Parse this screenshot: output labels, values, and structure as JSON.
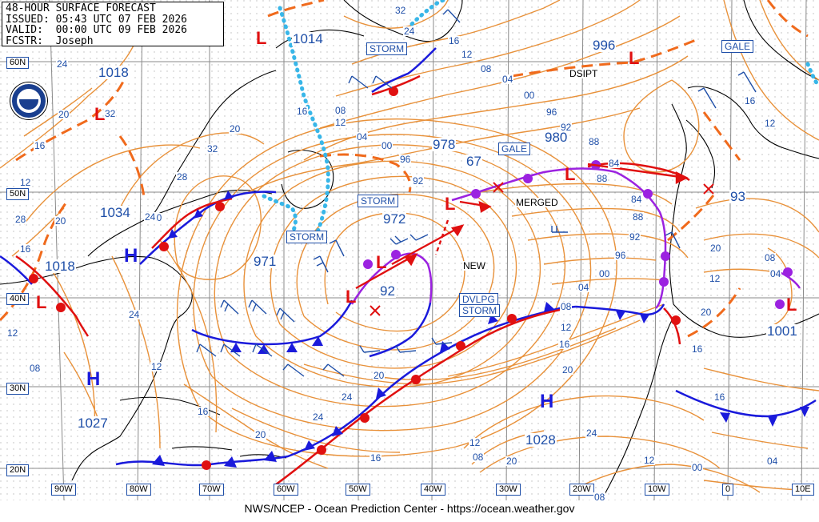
{
  "header": {
    "title": "48-HOUR SURFACE FORECAST",
    "issued": "ISSUED: 05:43 UTC 07 FEB 2026",
    "valid": "VALID:  00:00 UTC 09 FEB 2026",
    "forecaster": "FCSTR:  Joseph"
  },
  "footer": "NWS/NCEP - Ocean Prediction Center - https://ocean.weather.gov",
  "colors": {
    "isobar": "#e8913a",
    "label": "#1f4fa8",
    "cold_front": "#1a1adb",
    "warm_front": "#e01010",
    "occluded_front": "#9b22e0",
    "trough": "#f06a1c",
    "ice_edge": "#38b6e8",
    "land": "#000000",
    "grid": "#8a8a8a"
  },
  "lat_labels": [
    "60N",
    "50N",
    "40N",
    "30N",
    "20N"
  ],
  "lon_labels": [
    "90W",
    "80W",
    "70W",
    "60W",
    "50W",
    "40W",
    "30W",
    "20W",
    "10W",
    "0",
    "10E"
  ],
  "systems": [
    {
      "type": "H",
      "pressure": "1034"
    },
    {
      "type": "H",
      "pressure": "1027"
    },
    {
      "type": "H",
      "pressure": "1028"
    },
    {
      "type": "L",
      "pressure": "1014"
    },
    {
      "type": "L",
      "pressure": "996"
    },
    {
      "type": "L",
      "pressure": "978"
    },
    {
      "type": "L",
      "pressure": "980"
    },
    {
      "type": "L",
      "pressure": "972"
    },
    {
      "type": "L",
      "pressure": "971"
    },
    {
      "type": "L",
      "pressure": "93"
    },
    {
      "type": "L",
      "pressure": "1001"
    },
    {
      "type": "L",
      "pressure": "1018"
    },
    {
      "type": "L",
      "pressure": "1018"
    }
  ],
  "warnings": [
    "STORM",
    "STORM",
    "STORM",
    "GALE",
    "GALE",
    "DVLPG STORM"
  ],
  "annotations": [
    "DSIPT",
    "MERGED",
    "NEW",
    "67",
    "92"
  ],
  "isobar_values": [
    "32",
    "24",
    "16",
    "12",
    "08",
    "04",
    "00",
    "96",
    "92",
    "88",
    "84",
    "24",
    "20",
    "16",
    "12",
    "28",
    "32",
    "20",
    "24",
    "20",
    "32",
    "28",
    "24",
    "20",
    "16",
    "12",
    "08",
    "12",
    "16",
    "20",
    "24",
    "24",
    "20",
    "16",
    "12",
    "08",
    "04",
    "00",
    "96",
    "92",
    "88",
    "84",
    "88",
    "92",
    "96",
    "00",
    "04",
    "08",
    "12",
    "16",
    "20",
    "24",
    "20",
    "16",
    "12",
    "08",
    "04",
    "00",
    "08",
    "12",
    "16",
    "20",
    "16",
    "12",
    "04",
    "08",
    "20",
    "16",
    "12"
  ]
}
